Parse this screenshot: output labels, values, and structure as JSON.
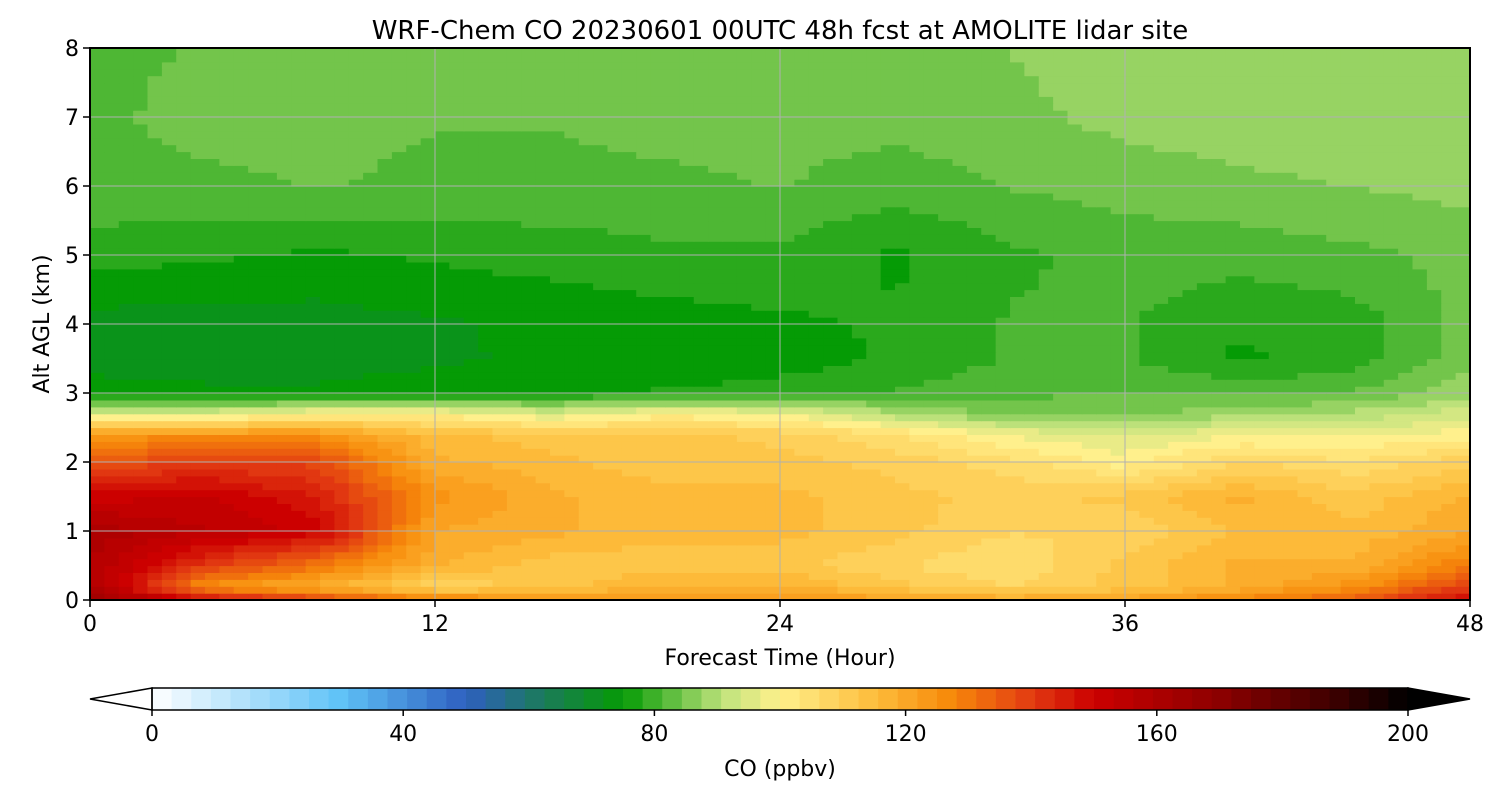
{
  "chart_data": {
    "type": "heatmap",
    "title": "WRF-Chem CO  20230601 00UTC 48h fcst at AMOLITE lidar site",
    "xlabel": "Forecast Time (Hour)",
    "ylabel": "Alt AGL (km)",
    "xlim": [
      0,
      48
    ],
    "ylim": [
      0,
      8
    ],
    "xticks": [
      "0",
      "12",
      "24",
      "36",
      "48"
    ],
    "yticks": [
      "0",
      "1",
      "2",
      "3",
      "4",
      "5",
      "6",
      "7",
      "8"
    ],
    "grid": true,
    "colorbar": {
      "label": "CO  (ppbv)",
      "range": [
        0,
        200
      ],
      "ticks": [
        "0",
        "40",
        "80",
        "120",
        "160",
        "200"
      ],
      "extend": "both",
      "stops": [
        {
          "value": 0,
          "color": "#ffffff"
        },
        {
          "value": 30,
          "color": "#5fc2f7"
        },
        {
          "value": 50,
          "color": "#2e5fc0"
        },
        {
          "value": 62,
          "color": "#1b7a5c"
        },
        {
          "value": 75,
          "color": "#059b05"
        },
        {
          "value": 91,
          "color": "#c0e37d"
        },
        {
          "value": 100,
          "color": "#fff08c"
        },
        {
          "value": 115,
          "color": "#fdbd3c"
        },
        {
          "value": 127,
          "color": "#f78a0a"
        },
        {
          "value": 140,
          "color": "#e23b12"
        },
        {
          "value": 150,
          "color": "#cc0000"
        },
        {
          "value": 170,
          "color": "#8c0000"
        },
        {
          "value": 190,
          "color": "#350000"
        },
        {
          "value": 200,
          "color": "#000000"
        }
      ]
    },
    "x": [
      0,
      4,
      8,
      12,
      16,
      20,
      24,
      28,
      32,
      36,
      40,
      44,
      48
    ],
    "y": [
      0,
      0.2,
      0.5,
      1.0,
      1.5,
      2.0,
      2.4,
      2.7,
      3.0,
      3.5,
      4.0,
      5.0,
      6.0,
      7.0,
      8.0
    ],
    "values": [
      [
        165,
        150,
        140,
        130,
        125,
        122,
        125,
        122,
        120,
        122,
        128,
        135,
        150
      ],
      [
        160,
        125,
        118,
        108,
        112,
        118,
        118,
        112,
        108,
        112,
        118,
        125,
        140
      ],
      [
        158,
        140,
        130,
        118,
        112,
        112,
        112,
        108,
        105,
        112,
        118,
        118,
        130
      ],
      [
        160,
        155,
        150,
        120,
        118,
        115,
        115,
        112,
        108,
        108,
        115,
        115,
        120
      ],
      [
        150,
        152,
        145,
        125,
        118,
        115,
        115,
        112,
        110,
        112,
        118,
        112,
        118
      ],
      [
        135,
        140,
        138,
        118,
        115,
        112,
        112,
        110,
        106,
        100,
        108,
        105,
        110
      ],
      [
        125,
        125,
        125,
        115,
        112,
        112,
        110,
        105,
        98,
        95,
        98,
        98,
        100
      ],
      [
        95,
        95,
        100,
        100,
        95,
        100,
        98,
        90,
        85,
        85,
        88,
        90,
        94
      ],
      [
        75,
        74,
        74,
        75,
        76,
        77,
        78,
        80,
        82,
        83,
        82,
        83,
        88
      ],
      [
        72,
        72,
        72,
        73,
        74,
        74,
        75,
        77,
        80,
        80,
        76,
        78,
        85
      ],
      [
        72,
        72,
        72,
        73,
        74,
        75,
        76,
        77,
        80,
        80,
        77,
        78,
        84
      ],
      [
        78,
        77,
        76,
        77,
        78,
        79,
        79,
        76,
        79,
        81,
        81,
        82,
        84
      ],
      [
        82,
        82,
        83,
        82,
        82,
        82,
        83,
        81,
        83,
        84,
        85,
        86,
        87
      ],
      [
        82,
        84,
        84,
        83,
        83,
        84,
        84,
        84,
        85,
        87,
        88,
        89,
        89
      ],
      [
        82,
        83,
        84,
        84,
        84,
        84,
        84,
        85,
        86,
        88,
        89,
        89,
        89
      ]
    ]
  }
}
